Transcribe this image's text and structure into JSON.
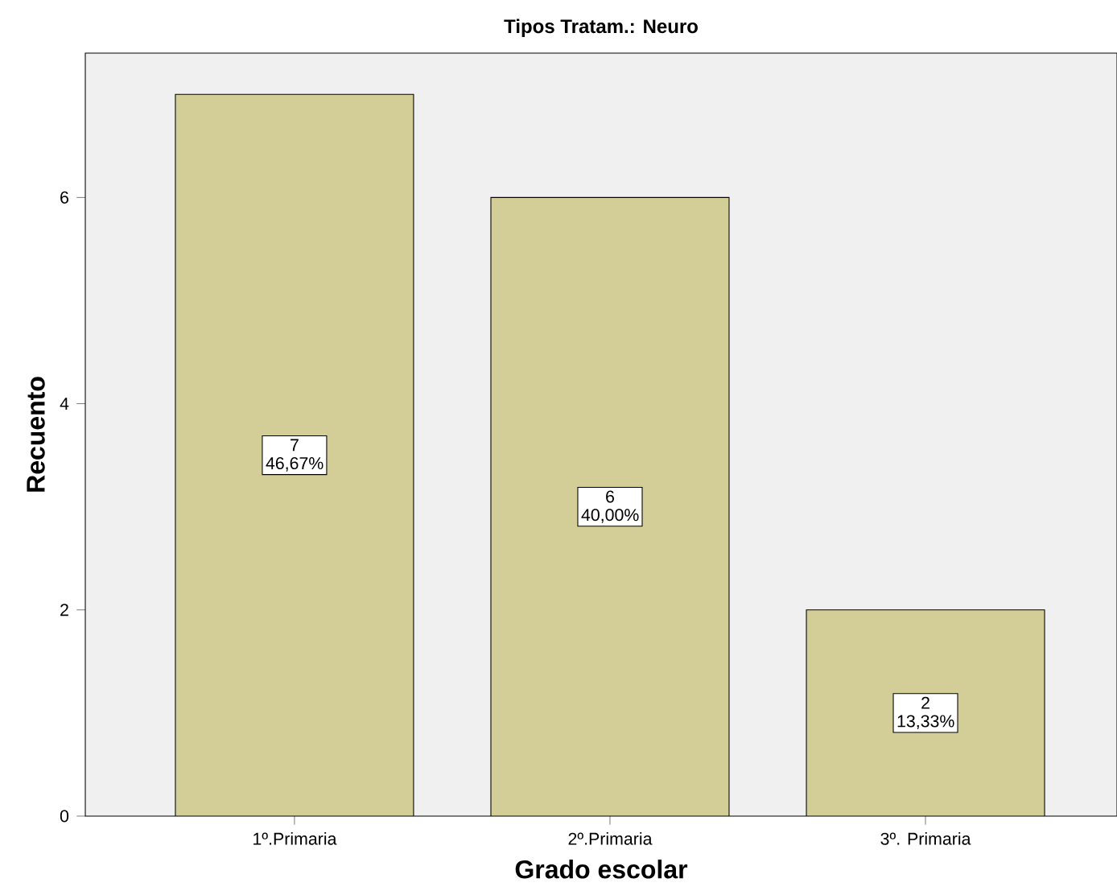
{
  "chart_data": {
    "type": "bar",
    "title": "Tipos Tratam.: Neuro",
    "xlabel": "Grado escolar",
    "ylabel": "Recuento",
    "categories": [
      "1º.Primaria",
      "2º.Primaria",
      "3º. Primaria"
    ],
    "values": [
      7,
      6,
      2
    ],
    "color": "#d3ce97",
    "value_labels": [
      "7 46,67%",
      "6 40,00%",
      "2 13,33%"
    ],
    "ylim": [
      0,
      7.4
    ],
    "yticks": [
      0,
      2,
      4,
      6
    ],
    "grid": false
  }
}
